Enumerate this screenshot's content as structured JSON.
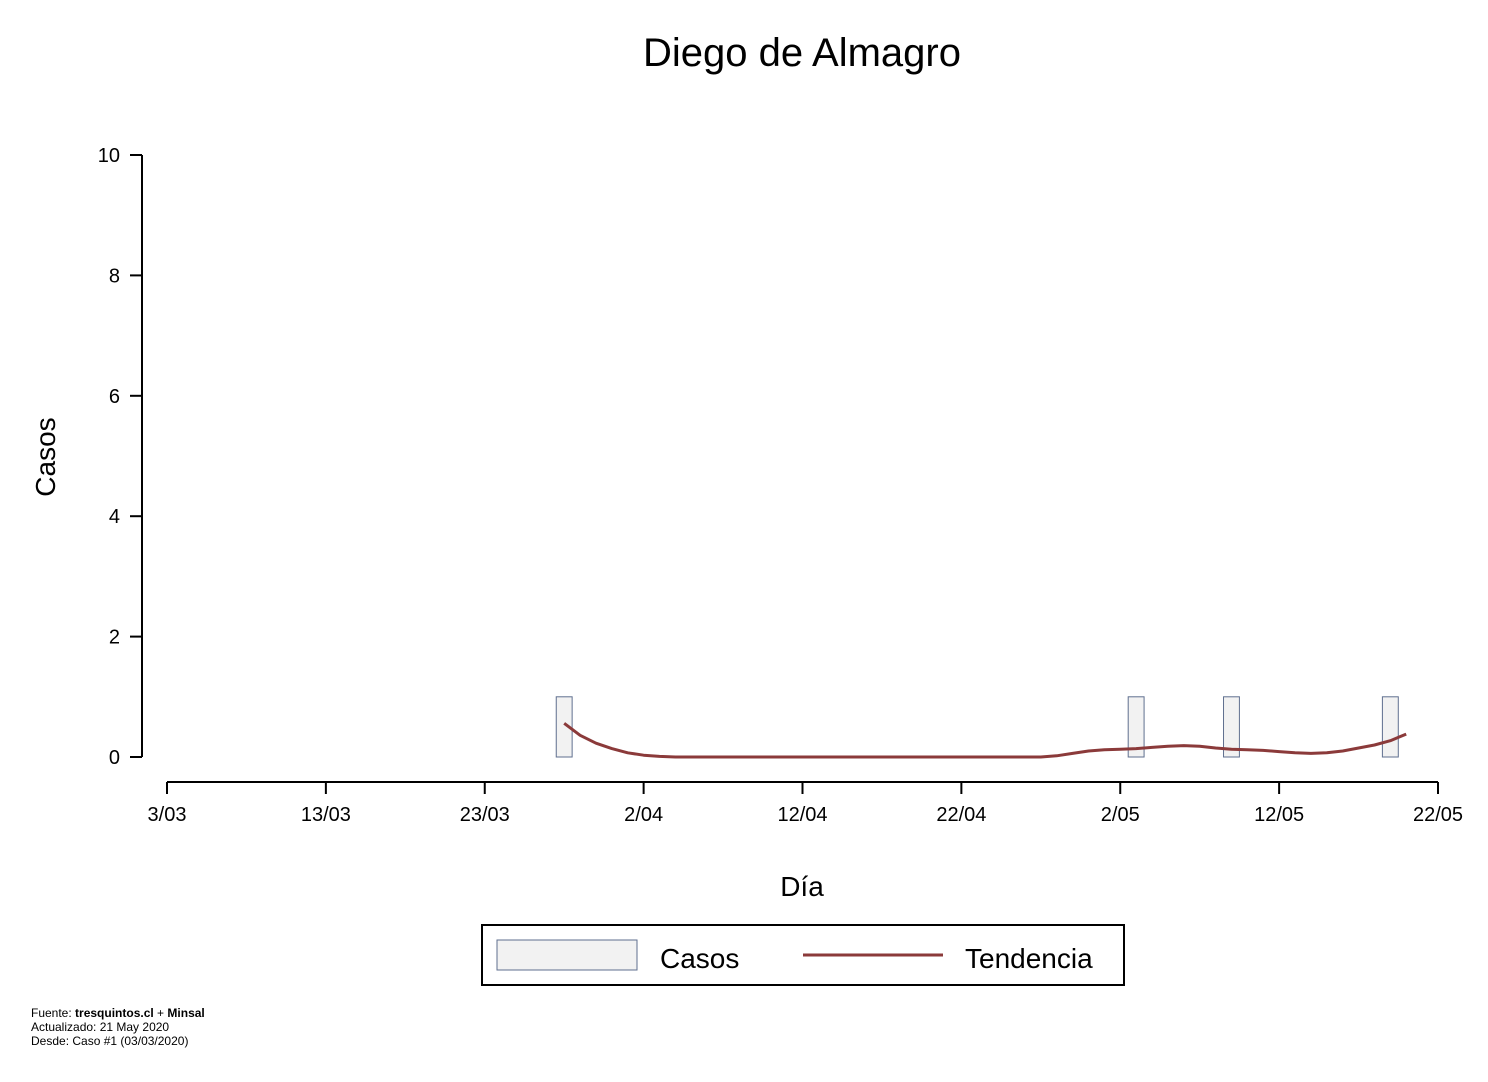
{
  "chart_data": {
    "type": "bar",
    "title": "Diego de Almagro",
    "xlabel": "Día",
    "ylabel": "Casos",
    "xlim": [
      "2020-03-03",
      "2020-05-22"
    ],
    "ylim": [
      0,
      10
    ],
    "x_ticks": [
      "3/03",
      "13/03",
      "23/03",
      "2/04",
      "12/04",
      "22/04",
      "2/05",
      "12/05",
      "22/05"
    ],
    "y_ticks": [
      0,
      2,
      4,
      6,
      8,
      10
    ],
    "grid": false,
    "legend_position": "bottom-center",
    "bars": {
      "name": "Casos",
      "color_fill": "#f2f2f2",
      "color_stroke": "#5f6f8f",
      "x": [
        "2020-03-28",
        "2020-05-03",
        "2020-05-09",
        "2020-05-19"
      ],
      "values": [
        1,
        1,
        1,
        1
      ]
    },
    "trend": {
      "name": "Tendencia",
      "color": "#8b3a3a",
      "x": [
        "2020-03-28",
        "2020-03-29",
        "2020-03-30",
        "2020-03-31",
        "2020-04-01",
        "2020-04-02",
        "2020-04-03",
        "2020-04-04",
        "2020-04-05",
        "2020-04-10",
        "2020-04-15",
        "2020-04-20",
        "2020-04-25",
        "2020-04-27",
        "2020-04-28",
        "2020-04-29",
        "2020-04-30",
        "2020-05-01",
        "2020-05-02",
        "2020-05-03",
        "2020-05-04",
        "2020-05-05",
        "2020-05-06",
        "2020-05-07",
        "2020-05-08",
        "2020-05-09",
        "2020-05-10",
        "2020-05-11",
        "2020-05-12",
        "2020-05-13",
        "2020-05-14",
        "2020-05-15",
        "2020-05-16",
        "2020-05-17",
        "2020-05-18",
        "2020-05-19",
        "2020-05-20"
      ],
      "values": [
        0.56,
        0.36,
        0.23,
        0.14,
        0.07,
        0.03,
        0.01,
        0.0,
        0.0,
        0.0,
        0.0,
        0.0,
        0.0,
        0.0,
        0.02,
        0.06,
        0.1,
        0.12,
        0.13,
        0.14,
        0.16,
        0.18,
        0.19,
        0.18,
        0.15,
        0.13,
        0.12,
        0.11,
        0.09,
        0.07,
        0.06,
        0.07,
        0.1,
        0.15,
        0.2,
        0.27,
        0.38
      ]
    }
  },
  "footer": {
    "source_prefix": "Fuente: ",
    "source_site": "tresquintos.cl",
    "source_join": " + ",
    "source_org": "Minsal",
    "updated": "Actualizado: 21 May 2020",
    "since": "Desde: Caso #1  (03/03/2020)"
  }
}
